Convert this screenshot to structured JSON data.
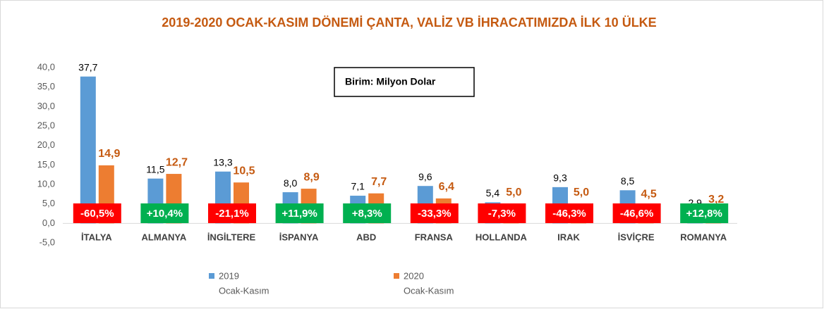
{
  "chart_data": {
    "type": "bar",
    "title": "2019-2020 OCAK-KASIM DÖNEMİ ÇANTA, VALİZ VB İHRACATIMIZDA İLK  10 ÜLKE",
    "annotation": "Birim: Milyon Dolar",
    "categories": [
      "İTALYA",
      "ALMANYA",
      "İNGİLTERE",
      "İSPANYA",
      "ABD",
      "FRANSA",
      "HOLLANDA",
      "IRAK",
      "İSVİÇRE",
      "ROMANYA"
    ],
    "series": [
      {
        "name": "2019",
        "period": "Ocak-Kasım",
        "color": "#5b9bd5",
        "values": [
          37.7,
          11.5,
          13.3,
          8.0,
          7.1,
          9.6,
          5.4,
          9.3,
          8.5,
          2.9
        ],
        "value_labels": [
          "37,7",
          "11,5",
          "13,3",
          "8,0",
          "7,1",
          "9,6",
          "5,4",
          "9,3",
          "8,5",
          "2,9"
        ],
        "label_color": "#000000"
      },
      {
        "name": "2020",
        "period": "Ocak-Kasım",
        "color": "#ed7d31",
        "values": [
          14.9,
          12.7,
          10.5,
          8.9,
          7.7,
          6.4,
          5.0,
          5.0,
          4.5,
          3.2
        ],
        "value_labels": [
          "14,9",
          "12,7",
          "10,5",
          "8,9",
          "7,7",
          "6,4",
          "5,0",
          "5,0",
          "4,5",
          "3,2"
        ],
        "label_color": "#c55a11"
      }
    ],
    "changes": [
      {
        "label": "-60,5%",
        "color": "#ff0000"
      },
      {
        "label": "+10,4%",
        "color": "#00b050"
      },
      {
        "label": "-21,1%",
        "color": "#ff0000"
      },
      {
        "label": "+11,9%",
        "color": "#00b050"
      },
      {
        "label": "+8,3%",
        "color": "#00b050"
      },
      {
        "label": "-33,3%",
        "color": "#ff0000"
      },
      {
        "label": "-7,3%",
        "color": "#ff0000"
      },
      {
        "label": "-46,3%",
        "color": "#ff0000"
      },
      {
        "label": "-46,6%",
        "color": "#ff0000"
      },
      {
        "label": "+12,8%",
        "color": "#00b050"
      }
    ],
    "ylim": [
      -5,
      40
    ],
    "yticks": [
      {
        "value": -5,
        "label": "-5,0"
      },
      {
        "value": 0,
        "label": "0,0"
      },
      {
        "value": 5,
        "label": "5,0"
      },
      {
        "value": 10,
        "label": "10,0"
      },
      {
        "value": 15,
        "label": "15,0"
      },
      {
        "value": 20,
        "label": "20,0"
      },
      {
        "value": 25,
        "label": "25,0"
      },
      {
        "value": 30,
        "label": "30,0"
      },
      {
        "value": 35,
        "label": "35,0"
      },
      {
        "value": 40,
        "label": "40,0"
      }
    ],
    "grid": false
  }
}
